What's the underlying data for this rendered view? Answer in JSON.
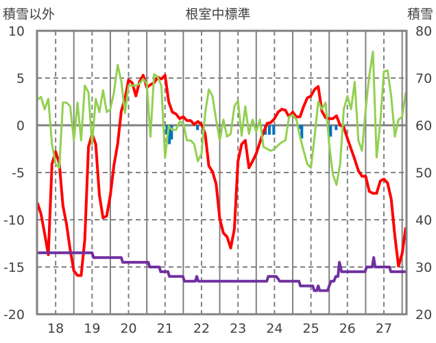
{
  "chart_data": {
    "type": "line",
    "title": "根室中標準",
    "ylabel_left": "積雪以外",
    "ylabel_right": "積雪",
    "xlim": [
      17.49,
      27.62
    ],
    "ylim_left": [
      -20,
      10
    ],
    "ylim_right": [
      20,
      80
    ],
    "yticks_left": [
      10,
      5,
      0,
      -5,
      -10,
      -15,
      -20
    ],
    "yticks_right": [
      80,
      70,
      60,
      50,
      40,
      30,
      20
    ],
    "xticks": [
      18,
      19,
      20,
      21,
      22,
      23,
      24,
      25,
      26,
      27
    ],
    "grid": true,
    "colors": {
      "red": "#FF0000",
      "green": "#92D050",
      "purple": "#7030A0",
      "blue": "#0070C0",
      "grid": "#808080"
    },
    "series_grid": {
      "x_start": 17.5,
      "x_step": 0.1
    },
    "series": [
      {
        "name": "red",
        "axis": "left",
        "color": "#FF0000",
        "values": [
          -8.2,
          -9.4,
          -11.5,
          -13.7,
          -4.1,
          -2.8,
          -4.0,
          -8.5,
          -10.5,
          -13.2,
          -15.4,
          -15.9,
          -15.9,
          -12.1,
          -2.3,
          -0.9,
          -2.0,
          -7.4,
          -9.8,
          -9.6,
          -7.4,
          -4.2,
          -2.0,
          1.5,
          2.8,
          4.8,
          4.5,
          3.1,
          4.6,
          5.3,
          4.0,
          4.3,
          4.5,
          5.1,
          4.9,
          5.3,
          2.5,
          1.4,
          1.2,
          0.7,
          0.9,
          0.5,
          0.5,
          0.1,
          0.4,
          0.1,
          -0.9,
          -4.3,
          -4.9,
          -6.2,
          -9.9,
          -11.4,
          -11.8,
          -13.0,
          -11.0,
          -3.8,
          -2.0,
          -1.6,
          -4.5,
          -3.8,
          -3.0,
          -1.8,
          -0.7,
          0.2,
          0.3,
          0.7,
          1.4,
          1.7,
          1.6,
          0.9,
          1.4,
          0.9,
          0.9,
          2.0,
          2.9,
          3.1,
          3.8,
          4.1,
          1.5,
          0.8,
          0.7,
          0.7,
          1.0,
          0,
          -0.2,
          -1.4,
          -2.5,
          -3.6,
          -4.8,
          -5.4,
          -5.4,
          -7.0,
          -7.2,
          -7.2,
          -5.9,
          -5.7,
          -6.1,
          -7.8,
          -11.7,
          -14.9,
          -13.6,
          -10.8
        ]
      },
      {
        "name": "green",
        "axis": "left",
        "color": "#92D050",
        "values": [
          2.7,
          3.0,
          1.7,
          2.8,
          -2.0,
          -4.1,
          -4.5,
          2.4,
          2.4,
          2.0,
          -1.6,
          2.4,
          -1.6,
          4.2,
          3.5,
          -2.0,
          2.8,
          1.4,
          3.7,
          1.4,
          1.7,
          3.5,
          6.4,
          4.7,
          1.3,
          4.2,
          4.2,
          4.2,
          4.4,
          4.9,
          4.4,
          -1.2,
          5.4,
          5.1,
          4.2,
          -3.4,
          -0.1,
          -0.5,
          -0.5,
          0.4,
          0.2,
          -1.6,
          -1.6,
          -2.0,
          -3.8,
          -3.0,
          1.3,
          3.8,
          3.1,
          0.6,
          -1.6,
          0.6,
          -1.2,
          -0.9,
          2.0,
          2.6,
          -1.1,
          2.0,
          -0.9,
          0.6,
          -0.7,
          0.6,
          -2.3,
          -2.5,
          -2.7,
          -2.5,
          -2.1,
          -1.8,
          -1.6,
          0.9,
          1.1,
          0.6,
          -1.2,
          -2.7,
          -4.1,
          -4.5,
          -1.2,
          2.5,
          1.7,
          2.4,
          -2.0,
          -5.2,
          -6.3,
          -4.1,
          1.7,
          3.1,
          1.7,
          4.6,
          -1.6,
          -2.7,
          1.7,
          5.3,
          7.8,
          -3.4,
          0.2,
          5.7,
          5.8,
          3.1,
          -1.2,
          0.6,
          0.9,
          3.5
        ]
      },
      {
        "name": "purple",
        "axis": "right",
        "color": "#7030A0",
        "points": [
          [
            17.49,
            33
          ],
          [
            19.0,
            33
          ],
          [
            19.04,
            32
          ],
          [
            19.8,
            32
          ],
          [
            19.84,
            31
          ],
          [
            20.54,
            31
          ],
          [
            20.58,
            30
          ],
          [
            20.84,
            30
          ],
          [
            20.88,
            29
          ],
          [
            21.08,
            29
          ],
          [
            21.12,
            28
          ],
          [
            21.49,
            28
          ],
          [
            21.53,
            27
          ],
          [
            21.83,
            27
          ],
          [
            21.87,
            28
          ],
          [
            21.91,
            27
          ],
          [
            23.79,
            27
          ],
          [
            23.83,
            28
          ],
          [
            24.05,
            28
          ],
          [
            24.1,
            27.5
          ],
          [
            24.14,
            27
          ],
          [
            24.67,
            27
          ],
          [
            24.71,
            26
          ],
          [
            25.05,
            26
          ],
          [
            25.09,
            25
          ],
          [
            25.16,
            25
          ],
          [
            25.2,
            26
          ],
          [
            25.24,
            25
          ],
          [
            25.46,
            25
          ],
          [
            25.5,
            26
          ],
          [
            25.55,
            27
          ],
          [
            25.63,
            27
          ],
          [
            25.68,
            28
          ],
          [
            25.74,
            28
          ],
          [
            25.78,
            31
          ],
          [
            25.84,
            29
          ],
          [
            26.48,
            29
          ],
          [
            26.53,
            30
          ],
          [
            26.68,
            30
          ],
          [
            26.72,
            32
          ],
          [
            26.76,
            30
          ],
          [
            27.15,
            30
          ],
          [
            27.19,
            29
          ],
          [
            27.62,
            29
          ]
        ]
      },
      {
        "name": "blue",
        "axis": "left",
        "type": "bar",
        "color": "#0070C0",
        "points": [
          [
            21.05,
            -1.0
          ],
          [
            21.12,
            -2.0
          ],
          [
            21.18,
            -1.5
          ],
          [
            21.89,
            -0.5
          ],
          [
            23.75,
            -1.0
          ],
          [
            23.86,
            -1.0
          ],
          [
            23.98,
            -1.0
          ],
          [
            24.69,
            -0.4
          ],
          [
            24.75,
            -1.4
          ],
          [
            25.54,
            -1.2
          ],
          [
            25.69,
            -0.5
          ]
        ]
      }
    ]
  }
}
